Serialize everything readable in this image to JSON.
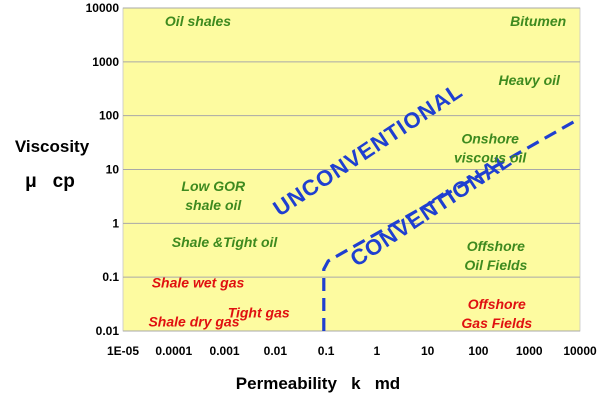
{
  "chart_data": {
    "type": "scatter",
    "title": "",
    "xlabel": "Permeability   k   md",
    "ylabel_line1": "Viscosity",
    "ylabel_line2": "μ   cp",
    "xscale": "log",
    "yscale": "log",
    "xlim": [
      1e-05,
      10000
    ],
    "ylim": [
      0.01,
      10000
    ],
    "grid": "horizontal",
    "x_ticks": [
      "1E-05",
      "0.0001",
      "0.001",
      "0.01",
      "0.1",
      "1",
      "10",
      "100",
      "1000",
      "10000"
    ],
    "y_ticks": [
      "0.01",
      "0.1",
      "1",
      "10",
      "100",
      "1000",
      "10000"
    ],
    "colors": {
      "plot_background": "#fdfba0",
      "gridline": "#a8a8a8",
      "green_label": "#3e8a1f",
      "red_label": "#e01010",
      "boundary": "#1f3fd0"
    },
    "annotations": [
      {
        "name": "oil-shales",
        "lines": [
          "Oil shales"
        ],
        "x": 0.0003,
        "y": 5700,
        "color": "green"
      },
      {
        "name": "bitumen",
        "lines": [
          "Bitumen"
        ],
        "x": 1500,
        "y": 5700,
        "color": "green"
      },
      {
        "name": "heavy-oil",
        "lines": [
          "Heavy oil"
        ],
        "x": 1000,
        "y": 460,
        "color": "green"
      },
      {
        "name": "onshore-viscous-oil",
        "lines": [
          "Onshore",
          "viscous oil"
        ],
        "x": 170,
        "y": 25,
        "color": "green"
      },
      {
        "name": "low-gor-shale-oil",
        "lines": [
          "Low GOR",
          "shale oil"
        ],
        "x": 0.0006,
        "y": 3.3,
        "color": "green"
      },
      {
        "name": "shale-tight-oil",
        "lines": [
          "Shale &Tight oil"
        ],
        "x": 0.001,
        "y": 0.45,
        "color": "green"
      },
      {
        "name": "offshore-oil-fields",
        "lines": [
          "Offshore",
          "Oil Fields"
        ],
        "x": 220,
        "y": 0.25,
        "color": "green"
      },
      {
        "name": "shale-wet-gas",
        "lines": [
          "Shale wet gas"
        ],
        "x": 0.0003,
        "y": 0.08,
        "color": "red"
      },
      {
        "name": "shale-dry-gas",
        "lines": [
          "Shale dry gas"
        ],
        "x": 0.00025,
        "y": 0.015,
        "color": "red"
      },
      {
        "name": "tight-gas",
        "lines": [
          "Tight gas"
        ],
        "x": 0.0047,
        "y": 0.022,
        "color": "red"
      },
      {
        "name": "offshore-gas-fields",
        "lines": [
          "Offshore",
          "Gas Fields"
        ],
        "x": 230,
        "y": 0.021,
        "color": "red"
      }
    ],
    "regions": [
      {
        "name": "unconventional",
        "label": "UNCONVENTIONAL",
        "x": 0.8,
        "y": 18
      },
      {
        "name": "conventional",
        "label": "CONVENTIONAL",
        "x": 14,
        "y": 1.4
      }
    ],
    "boundary_line": {
      "x": [
        0.09,
        0.09,
        0.11,
        8500
      ],
      "y": [
        0.01,
        0.14,
        0.2,
        82
      ]
    }
  }
}
